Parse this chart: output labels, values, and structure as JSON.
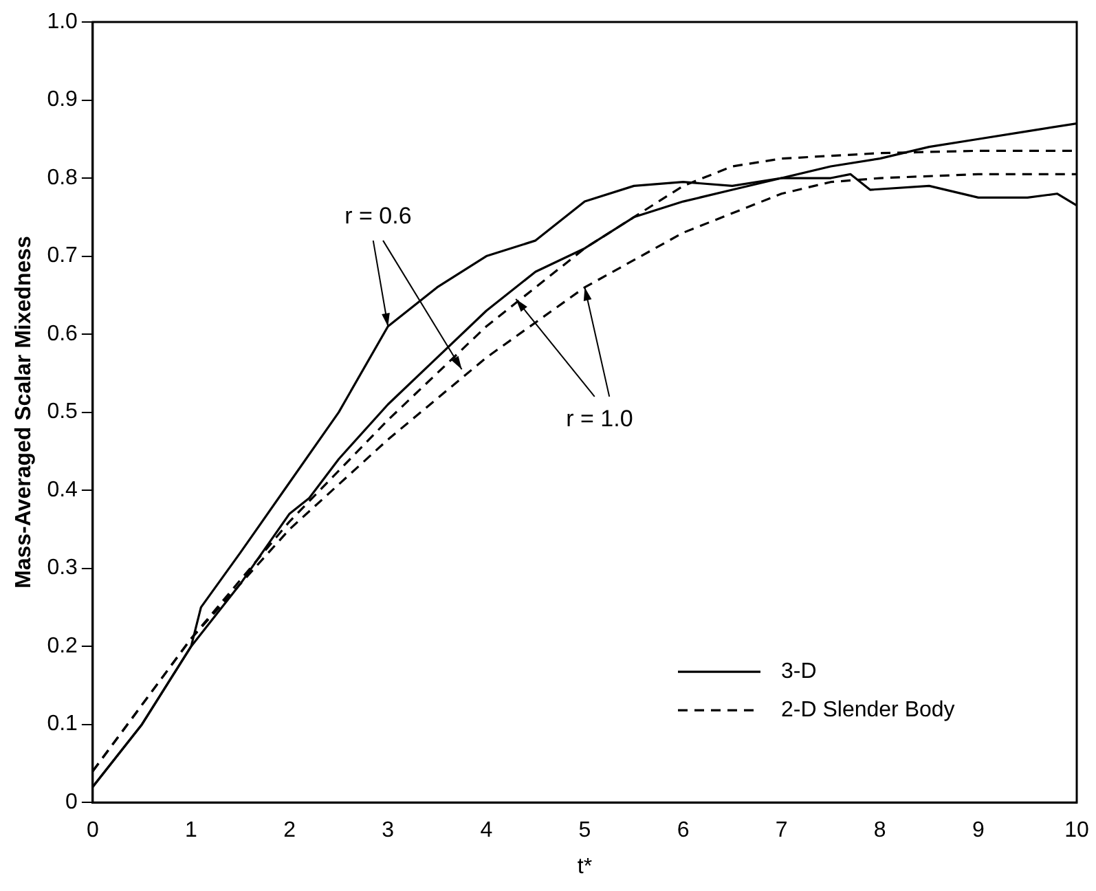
{
  "chart_data": {
    "type": "line",
    "xlabel": "t*",
    "ylabel": "Mass-Averaged Scalar Mixedness",
    "xlim": [
      0,
      10
    ],
    "ylim": [
      0,
      1.0
    ],
    "xticks": [
      0,
      1,
      2,
      3,
      4,
      5,
      6,
      7,
      8,
      9,
      10
    ],
    "yticks": [
      0,
      0.1,
      0.2,
      0.3,
      0.4,
      0.5,
      0.6,
      0.7,
      0.8,
      0.9,
      {
        "value": 1.0,
        "label": "1.0"
      }
    ],
    "grid": false,
    "legend": "bottom right",
    "marker": "none",
    "annotations": [
      {
        "text": "r = 0.6",
        "x": 3,
        "y": 0.61
      },
      {
        "text": "r = 1.0",
        "x": 5,
        "y": 0.66
      }
    ],
    "series": [
      {
        "name": "3-D",
        "color": "#000000",
        "line_style": "solid",
        "x": [
          0,
          0.5,
          1,
          1.1,
          1.5,
          2,
          2.5,
          3,
          3.5,
          4,
          4.5,
          5,
          5.5,
          6,
          6.5,
          7,
          7.5,
          7.7,
          7.9,
          8.5,
          9,
          9.5,
          9.8,
          10
        ],
        "values": [
          0.02,
          0.1,
          0.2,
          0.25,
          0.32,
          0.41,
          0.5,
          0.61,
          0.66,
          0.7,
          0.72,
          0.77,
          0.79,
          0.795,
          0.79,
          0.8,
          0.8,
          0.805,
          0.785,
          0.79,
          0.775,
          0.775,
          0.78,
          0.765
        ]
      },
      {
        "color": "#000000",
        "line_style": "solid",
        "x": [
          0,
          0.5,
          1,
          1.5,
          2,
          2.2,
          2.5,
          3,
          3.5,
          4,
          4.5,
          5,
          5.5,
          6,
          6.5,
          7,
          7.5,
          8,
          8.5,
          9,
          9.5,
          10
        ],
        "values": [
          0.02,
          0.1,
          0.2,
          0.28,
          0.37,
          0.39,
          0.44,
          0.51,
          0.57,
          0.63,
          0.68,
          0.71,
          0.75,
          0.77,
          0.785,
          0.8,
          0.815,
          0.825,
          0.84,
          0.85,
          0.86,
          0.87
        ]
      },
      {
        "name": "2-D Slender Body",
        "color": "#000000",
        "line_style": "dashed",
        "x": [
          0,
          1,
          2,
          3,
          4,
          5,
          6,
          6.5,
          7,
          8,
          9,
          10
        ],
        "values": [
          0.04,
          0.21,
          0.36,
          0.49,
          0.61,
          0.71,
          0.79,
          0.815,
          0.825,
          0.832,
          0.835,
          0.835
        ]
      },
      {
        "color": "#000000",
        "line_style": "dashed",
        "x": [
          0,
          1,
          2,
          3,
          4,
          5,
          6,
          7,
          7.5,
          8,
          9,
          10
        ],
        "values": [
          0.04,
          0.21,
          0.35,
          0.465,
          0.57,
          0.66,
          0.73,
          0.78,
          0.795,
          0.8,
          0.805,
          0.805
        ]
      }
    ]
  }
}
